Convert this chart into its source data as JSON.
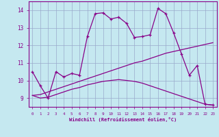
{
  "xlabel": "Windchill (Refroidissement éolien,°C)",
  "bg_color": "#c5e8f0",
  "line_color": "#880088",
  "grid_color": "#99aacc",
  "xlim": [
    -0.5,
    23.5
  ],
  "ylim": [
    8.5,
    14.5
  ],
  "yticks": [
    9,
    10,
    11,
    12,
    13,
    14
  ],
  "xticks": [
    0,
    1,
    2,
    3,
    4,
    5,
    6,
    7,
    8,
    9,
    10,
    11,
    12,
    13,
    14,
    15,
    16,
    17,
    18,
    19,
    20,
    21,
    22,
    23
  ],
  "curve1_x": [
    0,
    1,
    2,
    3,
    4,
    5,
    6,
    7,
    8,
    9,
    10,
    11,
    12,
    13,
    14,
    15,
    16,
    17,
    18,
    19,
    20,
    21,
    22,
    23
  ],
  "curve1_y": [
    10.5,
    9.7,
    9.0,
    10.5,
    10.2,
    10.4,
    10.3,
    12.5,
    13.8,
    13.85,
    13.5,
    13.6,
    13.25,
    12.45,
    12.5,
    12.6,
    14.1,
    13.8,
    12.7,
    11.5,
    10.3,
    10.85,
    8.65,
    8.6
  ],
  "curve2_x": [
    0,
    1,
    2,
    3,
    4,
    5,
    6,
    7,
    8,
    9,
    10,
    11,
    12,
    13,
    14,
    15,
    16,
    17,
    18,
    19,
    20,
    21,
    22,
    23
  ],
  "curve2_y": [
    9.15,
    9.0,
    9.05,
    9.2,
    9.35,
    9.5,
    9.6,
    9.75,
    9.85,
    9.95,
    10.0,
    10.05,
    10.0,
    9.95,
    9.85,
    9.7,
    9.55,
    9.4,
    9.25,
    9.1,
    8.95,
    8.8,
    8.65,
    8.6
  ],
  "curve3_x": [
    0,
    1,
    2,
    3,
    4,
    5,
    6,
    7,
    8,
    9,
    10,
    11,
    12,
    13,
    14,
    15,
    16,
    17,
    18,
    19,
    20,
    21,
    22,
    23
  ],
  "curve3_y": [
    9.15,
    9.2,
    9.35,
    9.5,
    9.65,
    9.8,
    9.95,
    10.1,
    10.25,
    10.4,
    10.55,
    10.7,
    10.85,
    11.0,
    11.1,
    11.25,
    11.4,
    11.55,
    11.65,
    11.75,
    11.85,
    11.95,
    12.05,
    12.15
  ]
}
